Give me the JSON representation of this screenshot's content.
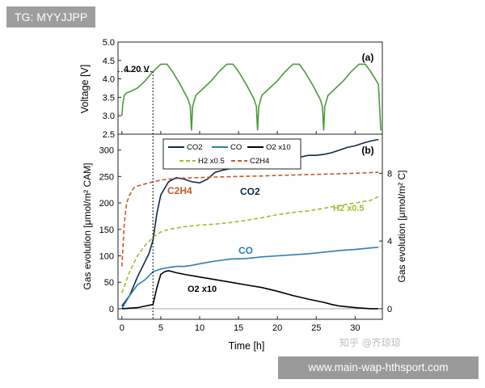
{
  "watermarks": {
    "top": "TG: MYYJJPP",
    "zhihu": "知乎 @齐琼琼",
    "bottom": "www.main-wap-hthsport.com"
  },
  "annotation_420": "4.20 V",
  "chart_data": [
    {
      "type": "line",
      "panel_label": "(a)",
      "ylabel": "Voltage [V]",
      "ylim": [
        2.5,
        5.0
      ],
      "yticks": [
        "2.5",
        "3.0",
        "3.5",
        "4.0",
        "4.5",
        "5.0"
      ],
      "xlim": [
        -0.5,
        33.5
      ],
      "series": [
        {
          "color": "#4c9a3b",
          "x": [
            0.0,
            0.1,
            0.3,
            0.6,
            1.0,
            2.0,
            3.0,
            4.0,
            5.0,
            5.8,
            6.5,
            7.5,
            8.5,
            8.8,
            8.95,
            9.1,
            9.5,
            10.5,
            11.5,
            12.5,
            13.5,
            14.3,
            15.0,
            16.0,
            17.0,
            17.3,
            17.45,
            17.6,
            18.0,
            19.0,
            20.0,
            21.0,
            22.0,
            22.8,
            23.5,
            24.5,
            25.5,
            25.8,
            25.95,
            26.1,
            26.5,
            27.5,
            28.5,
            29.5,
            30.5,
            31.3,
            32.0,
            33.0,
            33.3
          ],
          "y": [
            3.0,
            3.3,
            3.55,
            3.62,
            3.65,
            3.75,
            3.95,
            4.2,
            4.4,
            4.4,
            4.2,
            3.85,
            3.45,
            3.25,
            2.6,
            3.25,
            3.55,
            3.75,
            3.95,
            4.2,
            4.4,
            4.4,
            4.2,
            3.85,
            3.45,
            3.25,
            2.6,
            3.25,
            3.55,
            3.75,
            3.95,
            4.2,
            4.4,
            4.4,
            4.2,
            3.85,
            3.45,
            3.25,
            2.6,
            3.25,
            3.55,
            3.75,
            3.95,
            4.2,
            4.4,
            4.4,
            4.2,
            3.85,
            2.6
          ]
        }
      ]
    },
    {
      "type": "line",
      "panel_label": "(b)",
      "xlabel": "Time [h]",
      "ylabel": "Gas evolution [μmol/m² CAM]",
      "ylabel_right": "Gas evolution [μmol/m² C]",
      "xlim": [
        -0.5,
        33.5
      ],
      "xticks": [
        "0",
        "5",
        "10",
        "15",
        "20",
        "25",
        "30"
      ],
      "ylim": [
        -20,
        330
      ],
      "yticks": [
        "0",
        "50",
        "100",
        "150",
        "200",
        "250",
        "300"
      ],
      "yticks_right": [
        "0",
        "4",
        "8"
      ],
      "legend_placement": "top-center",
      "legend": [
        "CO2",
        "CO",
        "O2 x10",
        "H2 x0.5",
        "C2H4"
      ],
      "inline_labels": {
        "c2h4": "C2H4",
        "co2": "CO2",
        "h2": "H2 x0.5",
        "co": "CO",
        "o2": "O2 x10"
      },
      "series": [
        {
          "name": "CO2",
          "color": "#102a4a",
          "style": "solid",
          "x": [
            0,
            1,
            2,
            3,
            3.5,
            4,
            4.5,
            5,
            6,
            7,
            8,
            9,
            10,
            11,
            12,
            13,
            14,
            15,
            16,
            17,
            18,
            19,
            20,
            21,
            22,
            23,
            24,
            25,
            26,
            27,
            28,
            29,
            30,
            31,
            32,
            33
          ],
          "y": [
            5,
            25,
            60,
            90,
            105,
            130,
            180,
            215,
            240,
            248,
            245,
            240,
            238,
            245,
            258,
            262,
            265,
            270,
            275,
            282,
            280,
            270,
            270,
            283,
            285,
            287,
            290,
            290,
            292,
            295,
            300,
            305,
            308,
            313,
            317,
            320
          ]
        },
        {
          "name": "CO",
          "color": "#2a7fb0",
          "style": "solid",
          "x": [
            0,
            1,
            2,
            3,
            4,
            5,
            6,
            7,
            8,
            9,
            10,
            12,
            14,
            16,
            18,
            20,
            22,
            24,
            26,
            28,
            30,
            32,
            33
          ],
          "y": [
            0,
            25,
            45,
            55,
            70,
            75,
            78,
            80,
            80,
            82,
            85,
            90,
            94,
            95,
            98,
            100,
            102,
            104,
            107,
            110,
            112,
            115,
            116
          ]
        },
        {
          "name": "O2 x10",
          "color": "#000000",
          "style": "solid",
          "x": [
            0,
            2,
            3,
            4,
            4.5,
            5,
            5.5,
            6,
            7,
            8,
            10,
            12,
            14,
            16,
            18,
            20,
            22,
            24,
            26,
            27,
            28,
            30,
            32,
            33
          ],
          "y": [
            0,
            2,
            5,
            8,
            40,
            65,
            70,
            72,
            68,
            65,
            60,
            55,
            50,
            45,
            40,
            33,
            25,
            18,
            12,
            8,
            5,
            2,
            0,
            0
          ]
        },
        {
          "name": "H2 x0.5",
          "color": "#a8b830",
          "style": "dashed",
          "x": [
            0,
            1,
            2,
            3,
            4,
            5,
            6,
            8,
            10,
            12,
            14,
            16,
            18,
            20,
            22,
            24,
            26,
            28,
            30,
            32,
            33
          ],
          "y": [
            30,
            70,
            100,
            120,
            135,
            145,
            150,
            155,
            158,
            160,
            163,
            167,
            172,
            178,
            182,
            185,
            190,
            195,
            200,
            205,
            212
          ]
        },
        {
          "name": "C2H4",
          "color": "#c05a2a",
          "style": "dashed",
          "x": [
            0,
            0.3,
            0.6,
            1,
            1.5,
            2,
            3,
            4,
            5,
            6,
            8,
            10,
            12,
            15,
            18,
            20,
            25,
            30,
            33
          ],
          "y": [
            80,
            160,
            200,
            215,
            228,
            232,
            236,
            240,
            243,
            245,
            247,
            248,
            249,
            250,
            251,
            252,
            254,
            256,
            258
          ]
        }
      ]
    }
  ]
}
